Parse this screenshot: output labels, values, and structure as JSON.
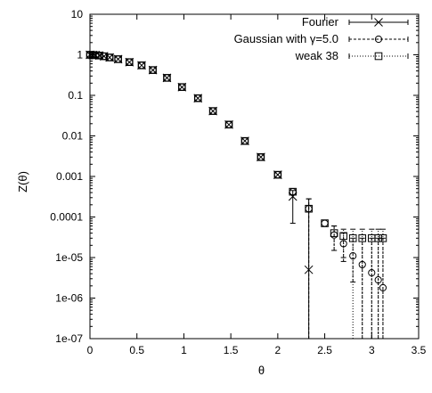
{
  "chart_data": {
    "type": "scatter",
    "ylabel": "Z(θ)",
    "xlabel": "θ",
    "xlim": [
      0,
      3.5
    ],
    "ylim": [
      1e-07,
      10
    ],
    "yscale": "log",
    "grid": false,
    "legend_position": "top-right",
    "xticks": [
      "0",
      "0.5",
      "1",
      "1.5",
      "2",
      "2.5",
      "3",
      "3.5"
    ],
    "yticks": [
      "10",
      "1",
      "0.1",
      "0.01",
      "0.001",
      "0.0001",
      "1e-05",
      "1e-06",
      "1e-07"
    ],
    "series": [
      {
        "name": "Fourier",
        "marker": "x",
        "errorbar_style": "solid",
        "points": [
          {
            "x": 0.0,
            "y": 1.0
          },
          {
            "x": 0.03,
            "y": 0.99
          },
          {
            "x": 0.06,
            "y": 0.98
          },
          {
            "x": 0.1,
            "y": 0.96
          },
          {
            "x": 0.15,
            "y": 0.92
          },
          {
            "x": 0.21,
            "y": 0.86
          },
          {
            "x": 0.3,
            "y": 0.78
          },
          {
            "x": 0.42,
            "y": 0.66
          },
          {
            "x": 0.55,
            "y": 0.55
          },
          {
            "x": 0.67,
            "y": 0.42
          },
          {
            "x": 0.82,
            "y": 0.27
          },
          {
            "x": 0.98,
            "y": 0.16
          },
          {
            "x": 1.15,
            "y": 0.085
          },
          {
            "x": 1.31,
            "y": 0.041
          },
          {
            "x": 1.48,
            "y": 0.019
          },
          {
            "x": 1.65,
            "y": 0.0075
          },
          {
            "x": 1.82,
            "y": 0.003
          },
          {
            "x": 2.0,
            "y": 0.0011
          },
          {
            "x": 2.16,
            "y": 0.00032,
            "err_low": 7e-05,
            "err_high": 0.00045
          },
          {
            "x": 2.33,
            "y": 5e-06,
            "err_low": 1e-07,
            "err_high": 0.00028
          }
        ]
      },
      {
        "name": "Gaussian with γ=5.0",
        "marker": "circle",
        "errorbar_style": "dashed",
        "points": [
          {
            "x": 0.0,
            "y": 1.0
          },
          {
            "x": 0.03,
            "y": 0.99
          },
          {
            "x": 0.06,
            "y": 0.98
          },
          {
            "x": 0.1,
            "y": 0.96
          },
          {
            "x": 0.15,
            "y": 0.92
          },
          {
            "x": 0.21,
            "y": 0.86
          },
          {
            "x": 0.3,
            "y": 0.78
          },
          {
            "x": 0.42,
            "y": 0.66
          },
          {
            "x": 0.55,
            "y": 0.55
          },
          {
            "x": 0.67,
            "y": 0.42
          },
          {
            "x": 0.82,
            "y": 0.27
          },
          {
            "x": 0.98,
            "y": 0.16
          },
          {
            "x": 1.15,
            "y": 0.085
          },
          {
            "x": 1.31,
            "y": 0.041
          },
          {
            "x": 1.48,
            "y": 0.019
          },
          {
            "x": 1.65,
            "y": 0.0075
          },
          {
            "x": 1.82,
            "y": 0.003
          },
          {
            "x": 2.0,
            "y": 0.0011
          },
          {
            "x": 2.16,
            "y": 0.00042
          },
          {
            "x": 2.33,
            "y": 0.00016,
            "err_low": 1e-07,
            "err_high": 0.00028
          },
          {
            "x": 2.5,
            "y": 7e-05
          },
          {
            "x": 2.6,
            "y": 3.6e-05,
            "err_low": 1.5e-05,
            "err_high": 6e-05
          },
          {
            "x": 2.7,
            "y": 2.2e-05,
            "err_low": 8e-06,
            "err_high": 4e-05
          },
          {
            "x": 2.8,
            "y": 1.1e-05,
            "err_low": 2.5e-06,
            "err_high": 3e-05
          },
          {
            "x": 2.9,
            "y": 6.7e-06,
            "err_low": 1e-07,
            "err_high": 3e-05
          },
          {
            "x": 3.0,
            "y": 4.2e-06,
            "err_low": 1e-07,
            "err_high": 3e-05
          },
          {
            "x": 3.07,
            "y": 2.8e-06,
            "err_low": 1e-07,
            "err_high": 3e-05
          },
          {
            "x": 3.12,
            "y": 1.8e-06,
            "err_low": 1e-07,
            "err_high": 3e-05
          }
        ]
      },
      {
        "name": "weak 38",
        "marker": "square",
        "errorbar_style": "dotted",
        "points": [
          {
            "x": 0.0,
            "y": 1.0
          },
          {
            "x": 0.03,
            "y": 0.99
          },
          {
            "x": 0.06,
            "y": 0.98
          },
          {
            "x": 0.1,
            "y": 0.96
          },
          {
            "x": 0.15,
            "y": 0.92
          },
          {
            "x": 0.21,
            "y": 0.86
          },
          {
            "x": 0.3,
            "y": 0.78
          },
          {
            "x": 0.42,
            "y": 0.66
          },
          {
            "x": 0.55,
            "y": 0.55
          },
          {
            "x": 0.67,
            "y": 0.42
          },
          {
            "x": 0.82,
            "y": 0.27
          },
          {
            "x": 0.98,
            "y": 0.16
          },
          {
            "x": 1.15,
            "y": 0.085
          },
          {
            "x": 1.31,
            "y": 0.041
          },
          {
            "x": 1.48,
            "y": 0.019
          },
          {
            "x": 1.65,
            "y": 0.0075
          },
          {
            "x": 1.82,
            "y": 0.003
          },
          {
            "x": 2.0,
            "y": 0.0011
          },
          {
            "x": 2.16,
            "y": 0.00042
          },
          {
            "x": 2.33,
            "y": 0.00016
          },
          {
            "x": 2.5,
            "y": 7e-05
          },
          {
            "x": 2.6,
            "y": 4e-05,
            "err_low": 1.5e-05,
            "err_high": 6e-05
          },
          {
            "x": 2.7,
            "y": 3.4e-05,
            "err_low": 1e-05,
            "err_high": 5e-05
          },
          {
            "x": 2.8,
            "y": 3e-05,
            "err_low": 1e-07,
            "err_high": 5e-05
          },
          {
            "x": 2.9,
            "y": 3e-05,
            "err_low": 1e-07,
            "err_high": 5e-05
          },
          {
            "x": 3.0,
            "y": 3e-05,
            "err_low": 1e-07,
            "err_high": 5e-05
          },
          {
            "x": 3.07,
            "y": 3e-05,
            "err_low": 1e-07,
            "err_high": 5e-05
          },
          {
            "x": 3.12,
            "y": 3e-05,
            "err_low": 1e-07,
            "err_high": 5e-05
          }
        ]
      }
    ]
  }
}
